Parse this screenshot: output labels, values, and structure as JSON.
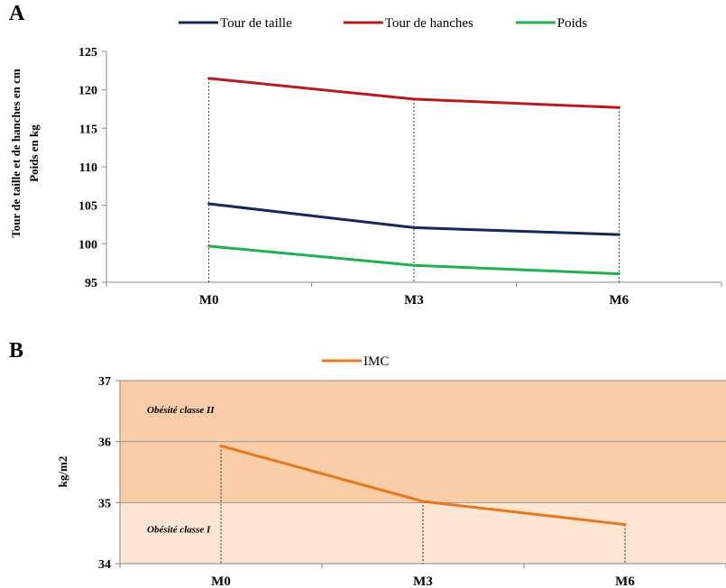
{
  "chart_data": [
    {
      "panel": "A",
      "type": "line",
      "categories": [
        "M0",
        "M3",
        "M6"
      ],
      "series": [
        {
          "name": "Tour de taille",
          "values": [
            105.2,
            102.1,
            101.2
          ],
          "color": "#14285c"
        },
        {
          "name": "Tour de hanches",
          "values": [
            121.5,
            118.8,
            117.7
          ],
          "color": "#b71c1c"
        },
        {
          "name": "Poids",
          "values": [
            99.7,
            97.2,
            96.1
          ],
          "color": "#22b04e"
        }
      ],
      "ylabel": [
        "Tour de taille et de hanches en cm",
        "Poids en kg"
      ],
      "ylim": [
        95,
        125
      ],
      "yticks": [
        "95",
        "100",
        "105",
        "110",
        "115",
        "120",
        "125"
      ],
      "legend": "top",
      "grid": false
    },
    {
      "panel": "B",
      "type": "line",
      "categories": [
        "M0",
        "M3",
        "M6"
      ],
      "series": [
        {
          "name": "IMC",
          "values": [
            35.93,
            35.02,
            34.64
          ],
          "color": "#e8781e"
        }
      ],
      "ylabel": "kg/m2",
      "ylim": [
        34,
        37
      ],
      "yticks": [
        "34",
        "35",
        "36",
        "37"
      ],
      "legend": "top",
      "grid": true,
      "bands": [
        {
          "label": "Obésité classe II",
          "from": 35,
          "to": 37,
          "color": "#f9cda7"
        },
        {
          "label": "Obésité classe I",
          "from": 34,
          "to": 35,
          "color": "#fce5d3"
        }
      ]
    }
  ]
}
